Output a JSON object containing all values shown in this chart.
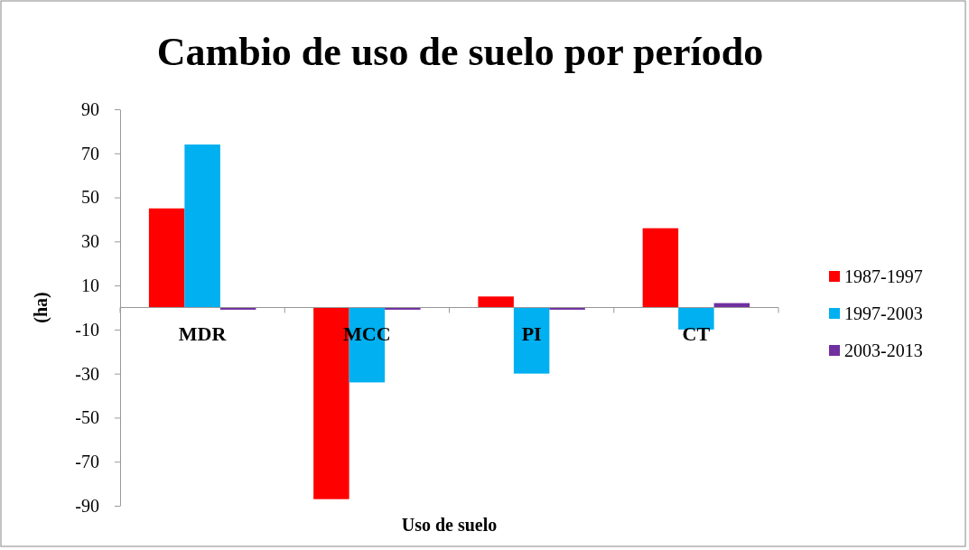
{
  "chart_data": {
    "type": "bar",
    "title": "Cambio de uso de suelo por período",
    "xlabel": "Uso de suelo",
    "ylabel": "(ha)",
    "categories": [
      "MDR",
      "MCC",
      "PI",
      "CT"
    ],
    "series": [
      {
        "name": "1987-1997",
        "color": "#ff0000",
        "values": [
          45,
          -87,
          5,
          36
        ]
      },
      {
        "name": "1997-2003",
        "color": "#00b0f0",
        "values": [
          74,
          -34,
          -30,
          -10
        ]
      },
      {
        "name": "2003-2013",
        "color": "#7030a0",
        "values": [
          -1,
          -1,
          -1,
          2
        ]
      }
    ],
    "ylim": [
      -90,
      90
    ],
    "yticks": [
      -90,
      -70,
      -50,
      -30,
      -10,
      10,
      30,
      50,
      70,
      90
    ],
    "grid": false,
    "legend": "right"
  }
}
